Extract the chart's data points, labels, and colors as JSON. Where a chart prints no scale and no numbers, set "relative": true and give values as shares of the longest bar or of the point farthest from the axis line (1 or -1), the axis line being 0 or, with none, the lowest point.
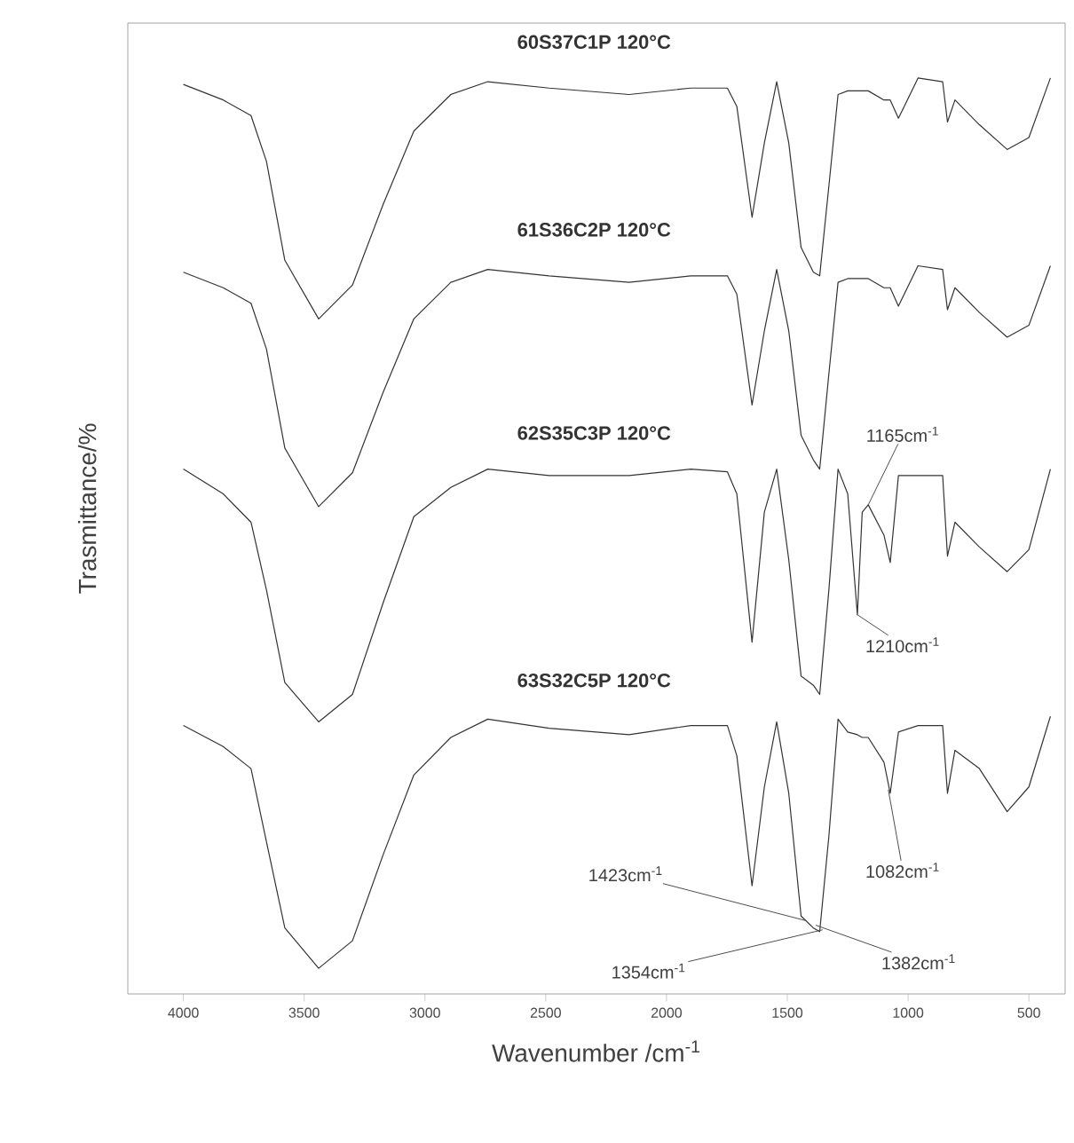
{
  "chart_data": {
    "type": "line",
    "relative": true,
    "xlabel": "Wavenumber /cm$^{-1}$",
    "ylabel": "Trasmittance/%",
    "xlim": [
      4230,
      350
    ],
    "xticks": [
      4000,
      3500,
      3000,
      2500,
      2000,
      1500,
      1000,
      500
    ],
    "tick_labels": "x",
    "grid": false,
    "marker": "none",
    "line_style": "solid",
    "x": [
      4000,
      3835,
      3720,
      3656,
      3580,
      3440,
      3300,
      3173,
      3046,
      2893,
      2740,
      2486,
      2155,
      1900,
      1748,
      1709,
      1646,
      1595,
      1544,
      1494,
      1443,
      1392,
      1366,
      1328,
      1290,
      1250,
      1210,
      1190,
      1165,
      1100,
      1074,
      1040,
      959,
      857,
      837,
      806,
      705,
      590,
      500,
      411
    ],
    "series": [
      {
        "name": "60S37C1P 120°C",
        "color": "#333333",
        "values": [
          0.993,
          0.976,
          0.959,
          0.909,
          0.801,
          0.737,
          0.774,
          0.862,
          0.942,
          0.982,
          0.996,
          0.989,
          0.982,
          0.989,
          0.989,
          0.969,
          0.848,
          0.929,
          0.996,
          0.929,
          0.815,
          0.788,
          0.784,
          0.882,
          0.982,
          0.986,
          0.986,
          0.986,
          0.986,
          0.976,
          0.976,
          0.956,
          1.0,
          0.996,
          0.952,
          0.976,
          0.949,
          0.922,
          0.935,
          1.0
        ]
      },
      {
        "name": "61S36C2P 120°C",
        "color": "#333333",
        "values": [
          0.788,
          0.771,
          0.754,
          0.704,
          0.596,
          0.532,
          0.569,
          0.657,
          0.737,
          0.777,
          0.791,
          0.784,
          0.777,
          0.784,
          0.784,
          0.764,
          0.643,
          0.724,
          0.791,
          0.724,
          0.61,
          0.583,
          0.573,
          0.677,
          0.777,
          0.781,
          0.781,
          0.781,
          0.781,
          0.771,
          0.771,
          0.751,
          0.795,
          0.791,
          0.747,
          0.771,
          0.744,
          0.717,
          0.73,
          0.795
        ]
      },
      {
        "name": "62S35C3P 120°C",
        "color": "#333333",
        "values": [
          0.573,
          0.546,
          0.515,
          0.441,
          0.34,
          0.297,
          0.327,
          0.427,
          0.521,
          0.553,
          0.573,
          0.566,
          0.566,
          0.573,
          0.57,
          0.546,
          0.384,
          0.526,
          0.573,
          0.474,
          0.347,
          0.337,
          0.327,
          0.441,
          0.573,
          0.546,
          0.414,
          0.526,
          0.534,
          0.501,
          0.471,
          0.566,
          0.566,
          0.566,
          0.478,
          0.515,
          0.488,
          0.461,
          0.485,
          0.573
        ]
      },
      {
        "name": "63S32C5P 120°C",
        "color": "#333333",
        "values": [
          0.293,
          0.27,
          0.246,
          0.166,
          0.072,
          0.028,
          0.058,
          0.152,
          0.239,
          0.28,
          0.3,
          0.29,
          0.283,
          0.293,
          0.293,
          0.26,
          0.118,
          0.226,
          0.297,
          0.219,
          0.085,
          0.072,
          0.068,
          0.172,
          0.3,
          0.286,
          0.283,
          0.28,
          0.28,
          0.253,
          0.219,
          0.286,
          0.293,
          0.293,
          0.219,
          0.266,
          0.246,
          0.199,
          0.226,
          0.303
        ]
      }
    ],
    "annotations": [
      {
        "text": "1165cm$^{-1}$",
        "x": 1165,
        "y": 0.534
      },
      {
        "text": "1210cm$^{-1}$",
        "x": 1210,
        "y": 0.414
      },
      {
        "text": "1082cm$^{-1}$",
        "x": 1082,
        "y": 0.223
      },
      {
        "text": "1423cm$^{-1}$",
        "x": 1423,
        "y": 0.08
      },
      {
        "text": "1354cm$^{-1}$",
        "x": 1354,
        "y": 0.07
      },
      {
        "text": "1382cm$^{-1}$",
        "x": 1382,
        "y": 0.075
      }
    ]
  }
}
